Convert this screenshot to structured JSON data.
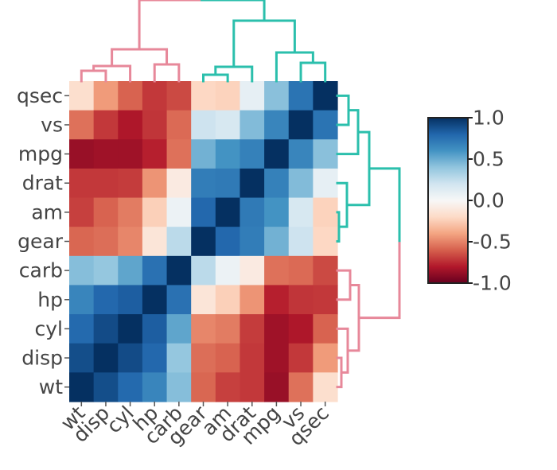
{
  "chart_data": {
    "type": "heatmap",
    "title": "",
    "x_categories": [
      "wt",
      "disp",
      "cyl",
      "hp",
      "carb",
      "gear",
      "am",
      "drat",
      "mpg",
      "vs",
      "qsec"
    ],
    "y_categories": [
      "qsec",
      "vs",
      "mpg",
      "drat",
      "am",
      "gear",
      "carb",
      "hp",
      "cyl",
      "disp",
      "wt"
    ],
    "values": [
      [
        -0.17,
        -0.43,
        -0.59,
        -0.71,
        -0.66,
        -0.21,
        -0.23,
        0.09,
        0.42,
        0.74,
        1.0
      ],
      [
        -0.55,
        -0.71,
        -0.81,
        -0.72,
        -0.57,
        0.21,
        0.17,
        0.44,
        0.66,
        1.0,
        0.74
      ],
      [
        -0.87,
        -0.85,
        -0.85,
        -0.78,
        -0.55,
        0.48,
        0.6,
        0.68,
        1.0,
        0.66,
        0.42
      ],
      [
        -0.71,
        -0.71,
        -0.7,
        -0.45,
        -0.09,
        0.7,
        0.71,
        1.0,
        0.68,
        0.44,
        0.09
      ],
      [
        -0.69,
        -0.59,
        -0.52,
        -0.24,
        0.06,
        0.79,
        1.0,
        0.71,
        0.6,
        0.17,
        -0.23
      ],
      [
        -0.58,
        -0.56,
        -0.49,
        -0.13,
        0.27,
        1.0,
        0.79,
        0.7,
        0.48,
        0.21,
        -0.21
      ],
      [
        0.43,
        0.39,
        0.53,
        0.75,
        1.0,
        0.27,
        0.06,
        -0.09,
        -0.55,
        -0.57,
        -0.66
      ],
      [
        0.66,
        0.79,
        0.83,
        1.0,
        0.75,
        -0.13,
        -0.24,
        -0.45,
        -0.78,
        -0.72,
        -0.71
      ],
      [
        0.78,
        0.9,
        1.0,
        0.83,
        0.53,
        -0.49,
        -0.52,
        -0.7,
        -0.85,
        -0.81,
        -0.59
      ],
      [
        0.89,
        1.0,
        0.9,
        0.79,
        0.39,
        -0.56,
        -0.59,
        -0.71,
        -0.85,
        -0.71,
        -0.43
      ],
      [
        1.0,
        0.89,
        0.78,
        0.66,
        0.43,
        -0.58,
        -0.69,
        -0.71,
        -0.87,
        -0.55,
        -0.17
      ]
    ],
    "zlim": [
      -1.0,
      1.0
    ],
    "colorbar": {
      "ticks": [
        1.0,
        0.5,
        0.0,
        -0.5,
        -1.0
      ],
      "tick_labels": [
        "1.0",
        "0.5",
        "0.0",
        "-0.5",
        "-1.0"
      ],
      "placement": "right"
    },
    "colorscale": [
      "#67001f",
      "#b2182b",
      "#d6604d",
      "#f4a582",
      "#fddbc7",
      "#f7f7f7",
      "#d1e5f0",
      "#92c5de",
      "#4393c3",
      "#2166ac",
      "#053061"
    ],
    "dendrogram_colors": {
      "group_a": "#e7889a",
      "group_b": "#2bbfac"
    },
    "grid": false
  }
}
